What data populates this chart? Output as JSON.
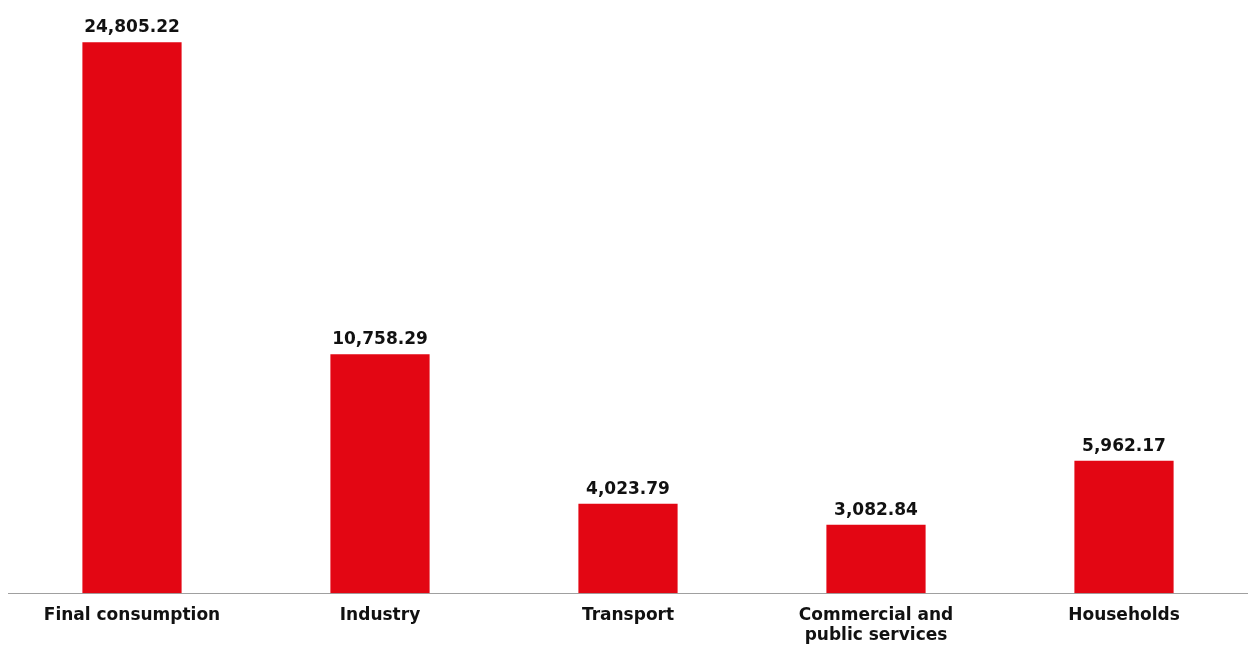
{
  "chart_data": {
    "type": "bar",
    "categories": [
      "Final consumption",
      "Industry",
      "Transport",
      "Commercial and public services",
      "Households"
    ],
    "values": [
      24805.22,
      10758.29,
      4023.79,
      3082.84,
      5962.17
    ],
    "value_labels": [
      "24,805.22",
      "10,758.29",
      "4,023.79",
      "3,082.84",
      "5,962.17"
    ],
    "color": "#e30613",
    "grid": false,
    "legend": false
  }
}
